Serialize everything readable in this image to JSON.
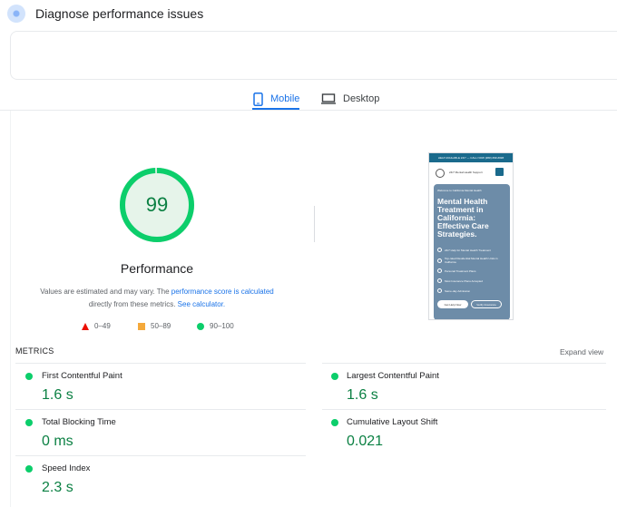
{
  "header": {
    "title": "Diagnose performance issues"
  },
  "tabs": [
    {
      "label": "Mobile",
      "active": true
    },
    {
      "label": "Desktop",
      "active": false
    }
  ],
  "score": {
    "value": "99",
    "fraction": 0.99,
    "label": "Performance",
    "desc_prefix": "Values are estimated and may vary. The ",
    "desc_link1": "performance score is calculated",
    "desc_mid": "directly from these metrics. ",
    "desc_link2": "See calculator."
  },
  "legend": [
    {
      "range": "0–49",
      "shape": "triangle",
      "color": "#eb0f00"
    },
    {
      "range": "50–89",
      "shape": "square",
      "color": "#f4a93b"
    },
    {
      "range": "90–100",
      "shape": "circle",
      "color": "#0cce6b"
    }
  ],
  "preview": {
    "topbar": "HELP AVAILABLE 24/7 — CALL NOW (###) ###-####",
    "nav_text": "24/7 Mental Health Support",
    "badge": "Welcome to California Mental Health",
    "heading": "Mental Health Treatment in California: Effective Care Strategies.",
    "items": [
      "24/7 Help for Mental Health Treatment",
      "Top-rated Residential Mental Health Units in California",
      "Personal Treatment Plans",
      "Most Insurance Plans Accepted",
      "Same-day Admission"
    ],
    "btn_primary": "Get Help Now",
    "btn_secondary": "Verify Insurance"
  },
  "metrics": {
    "title": "METRICS",
    "expand": "Expand view",
    "items": [
      {
        "name": "First Contentful Paint",
        "value": "1.6 s"
      },
      {
        "name": "Largest Contentful Paint",
        "value": "1.6 s"
      },
      {
        "name": "Total Blocking Time",
        "value": "0 ms"
      },
      {
        "name": "Cumulative Layout Shift",
        "value": "0.021"
      },
      {
        "name": "Speed Index",
        "value": "2.3 s"
      }
    ]
  },
  "colors": {
    "accent": "#1a73e8",
    "good": "#0cce6b",
    "good_text": "#0b8043"
  },
  "icons": [
    "pagespeed-logo-icon",
    "mobile-phone-icon",
    "desktop-monitor-icon"
  ]
}
